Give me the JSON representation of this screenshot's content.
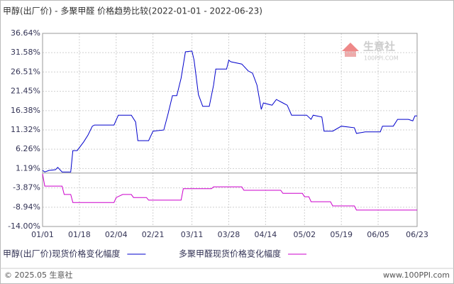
{
  "chart_data": {
    "type": "line",
    "title": "甲醇(出厂价) - 多聚甲醛 价格趋势比较(2022-01-01 - 2022-06-23)",
    "xlim": [
      "01/01",
      "06/23"
    ],
    "xticks": [
      "01/01",
      "01/18",
      "02/04",
      "02/21",
      "03/11",
      "03/28",
      "04/14",
      "05/02",
      "05/19",
      "06/05",
      "06/23"
    ],
    "ylim": [
      -14.0,
      36.64
    ],
    "yticks": [
      {
        "value": 36.64,
        "label": "36.64%"
      },
      {
        "value": 31.58,
        "label": "31.58%"
      },
      {
        "value": 26.51,
        "label": "26.51%"
      },
      {
        "value": 21.45,
        "label": "21.45%"
      },
      {
        "value": 16.38,
        "label": "16.38%"
      },
      {
        "value": 11.32,
        "label": "11.32%"
      },
      {
        "value": 6.26,
        "label": "6.26%"
      },
      {
        "value": 1.19,
        "label": "1.19%"
      },
      {
        "value": -3.87,
        "label": "-3.87%"
      },
      {
        "value": -8.94,
        "label": "-8.94%"
      },
      {
        "value": -14.0,
        "label": "-14.00%"
      }
    ],
    "grid": true,
    "series": [
      {
        "name": "甲醇(出厂价)现货价格变化幅度",
        "color": "#0000cc",
        "x": [
          "01/01",
          "01/02",
          "01/04",
          "01/07",
          "01/08",
          "01/10",
          "01/14",
          "01/15",
          "01/17",
          "01/20",
          "01/22",
          "01/24",
          "01/25",
          "02/03",
          "02/05",
          "02/11",
          "02/13",
          "02/14",
          "02/19",
          "02/21",
          "02/26",
          "02/28",
          "03/02",
          "03/04",
          "03/06",
          "03/08",
          "03/11",
          "03/12",
          "03/14",
          "03/16",
          "03/19",
          "03/21",
          "03/22",
          "03/27",
          "03/28",
          "03/29",
          "04/03",
          "04/06",
          "04/08",
          "04/10",
          "04/12",
          "04/13",
          "04/17",
          "04/19",
          "04/22",
          "04/24",
          "04/26",
          "05/03",
          "05/05",
          "05/06",
          "05/10",
          "05/11",
          "05/15",
          "05/19",
          "05/25",
          "05/26",
          "05/30",
          "06/06",
          "06/07",
          "06/12",
          "06/14",
          "06/19",
          "06/21",
          "06/22",
          "06/23"
        ],
        "values": [
          0.7,
          0.3,
          0.7,
          0.9,
          1.5,
          0.3,
          0.3,
          5.9,
          5.9,
          8.2,
          10.0,
          12.3,
          12.6,
          12.6,
          15.2,
          15.2,
          13.4,
          8.5,
          8.5,
          11.0,
          11.3,
          15.6,
          20.3,
          20.3,
          24.9,
          31.8,
          32.0,
          29.6,
          20.6,
          17.5,
          17.5,
          23.1,
          27.3,
          27.3,
          29.6,
          29.2,
          28.6,
          26.8,
          26.2,
          23.1,
          16.7,
          18.4,
          17.8,
          19.3,
          18.4,
          17.8,
          15.2,
          15.2,
          14.1,
          15.2,
          14.7,
          11.0,
          11.0,
          12.3,
          11.9,
          10.4,
          10.8,
          10.8,
          12.3,
          12.3,
          14.1,
          14.1,
          13.7,
          15.0,
          15.0
        ]
      },
      {
        "name": "多聚甲醛现货价格变化幅度",
        "color": "#cc00cc",
        "x": [
          "01/01",
          "01/02",
          "01/10",
          "01/11",
          "01/14",
          "01/15",
          "02/03",
          "02/04",
          "02/07",
          "02/11",
          "02/12",
          "02/18",
          "02/19",
          "03/06",
          "03/07",
          "03/20",
          "03/21",
          "04/03",
          "04/04",
          "04/21",
          "04/22",
          "05/01",
          "05/02",
          "05/04",
          "05/05",
          "05/14",
          "05/15",
          "05/25",
          "05/26",
          "06/23"
        ],
        "values": [
          -0.2,
          -3.4,
          -3.4,
          -5.6,
          -5.6,
          -7.7,
          -7.7,
          -6.4,
          -5.6,
          -5.6,
          -6.4,
          -6.4,
          -7.1,
          -7.1,
          -4.1,
          -4.1,
          -3.6,
          -3.6,
          -4.5,
          -4.5,
          -5.3,
          -5.3,
          -6.2,
          -6.2,
          -7.5,
          -7.5,
          -8.6,
          -8.6,
          -9.7,
          -9.7
        ]
      }
    ],
    "watermark": {
      "text": "生意社",
      "sub": "100PPI.COM"
    },
    "footer": {
      "left": "© 2025.05 生意社",
      "right": "www.100PPI.com"
    }
  }
}
